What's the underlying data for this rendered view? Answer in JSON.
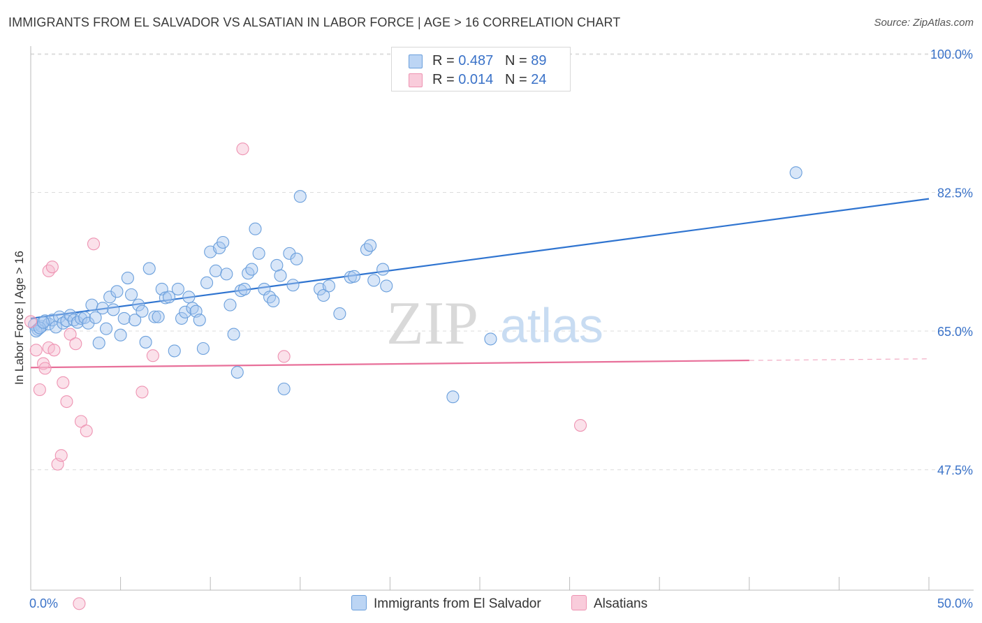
{
  "title": "IMMIGRANTS FROM EL SALVADOR VS ALSATIAN IN LABOR FORCE | AGE > 16 CORRELATION CHART",
  "source": "Source: ZipAtlas.com",
  "watermark": {
    "zip": "ZIP",
    "atlas": "atlas"
  },
  "legend": {
    "blue": {
      "r_label": "R = ",
      "r_value": "0.487",
      "n_label": "N = ",
      "n_value": "89"
    },
    "pink": {
      "r_label": "R = ",
      "r_value": "0.014",
      "n_label": "N = ",
      "n_value": "24"
    }
  },
  "colors": {
    "blue_fill": "#a9c8f0",
    "blue_stroke": "#6a9fdc",
    "blue_line": "#2f74d0",
    "pink_fill": "#f6bdd0",
    "pink_stroke": "#ee93b2",
    "pink_line": "#e8709a",
    "axis_text": "#3a72c8",
    "grid": "#dcdcdc"
  },
  "chart_data": {
    "type": "scatter",
    "xlabel": "",
    "ylabel": "In Labor Force | Age > 16",
    "xlim": [
      0,
      50
    ],
    "ylim": [
      32.3,
      101.5
    ],
    "x_tick_labels": [
      {
        "value": 0,
        "label": "0.0%"
      },
      {
        "value": 50,
        "label": "50.0%"
      }
    ],
    "y_ticks": [
      {
        "value": 100.0,
        "label": "100.0%"
      },
      {
        "value": 82.5,
        "label": "82.5%"
      },
      {
        "value": 65.0,
        "label": "65.0%"
      },
      {
        "value": 47.5,
        "label": "47.5%"
      }
    ],
    "series": [
      {
        "name": "Immigrants from El Salvador",
        "color": "blue",
        "trend": {
          "x0": 0,
          "y0": 66.6,
          "x1": 50,
          "y1": 81.7
        },
        "points": [
          [
            0.2,
            65.8
          ],
          [
            0.4,
            65.2
          ],
          [
            0.6,
            65.6
          ],
          [
            0.8,
            66.3
          ],
          [
            1.0,
            65.9
          ],
          [
            1.2,
            66.4
          ],
          [
            1.4,
            65.5
          ],
          [
            1.6,
            66.8
          ],
          [
            1.8,
            66.0
          ],
          [
            2.0,
            66.3
          ],
          [
            2.2,
            67.0
          ],
          [
            2.4,
            66.4
          ],
          [
            2.6,
            66.1
          ],
          [
            2.8,
            66.6
          ],
          [
            3.0,
            66.7
          ],
          [
            3.2,
            66.0
          ],
          [
            3.4,
            68.3
          ],
          [
            3.6,
            66.7
          ],
          [
            3.8,
            63.5
          ],
          [
            4.0,
            67.9
          ],
          [
            4.2,
            65.3
          ],
          [
            4.4,
            69.3
          ],
          [
            4.6,
            67.7
          ],
          [
            4.8,
            70.0
          ],
          [
            5.0,
            64.5
          ],
          [
            5.2,
            66.6
          ],
          [
            5.4,
            71.7
          ],
          [
            5.6,
            69.6
          ],
          [
            5.8,
            66.4
          ],
          [
            6.0,
            68.3
          ],
          [
            6.2,
            67.5
          ],
          [
            6.4,
            63.6
          ],
          [
            6.6,
            72.9
          ],
          [
            6.9,
            66.8
          ],
          [
            7.1,
            66.8
          ],
          [
            7.3,
            70.3
          ],
          [
            7.5,
            69.2
          ],
          [
            7.7,
            69.3
          ],
          [
            8.0,
            62.5
          ],
          [
            8.2,
            70.3
          ],
          [
            8.4,
            66.6
          ],
          [
            8.6,
            67.4
          ],
          [
            8.8,
            69.3
          ],
          [
            9.0,
            67.9
          ],
          [
            9.2,
            67.5
          ],
          [
            9.4,
            66.4
          ],
          [
            9.6,
            62.8
          ],
          [
            9.8,
            71.1
          ],
          [
            10.0,
            75.0
          ],
          [
            10.3,
            72.6
          ],
          [
            10.5,
            75.5
          ],
          [
            10.7,
            76.2
          ],
          [
            10.9,
            72.2
          ],
          [
            11.1,
            68.3
          ],
          [
            11.3,
            64.6
          ],
          [
            11.5,
            59.8
          ],
          [
            11.7,
            70.1
          ],
          [
            11.9,
            70.3
          ],
          [
            12.1,
            72.3
          ],
          [
            12.3,
            72.8
          ],
          [
            12.5,
            77.9
          ],
          [
            12.7,
            74.8
          ],
          [
            13.0,
            70.3
          ],
          [
            13.3,
            69.3
          ],
          [
            13.5,
            68.8
          ],
          [
            13.7,
            73.3
          ],
          [
            13.9,
            72.0
          ],
          [
            14.1,
            57.7
          ],
          [
            14.4,
            74.8
          ],
          [
            14.6,
            70.8
          ],
          [
            14.8,
            74.1
          ],
          [
            15.0,
            82.0
          ],
          [
            16.1,
            70.3
          ],
          [
            16.3,
            69.5
          ],
          [
            16.6,
            70.7
          ],
          [
            17.2,
            67.2
          ],
          [
            17.8,
            71.8
          ],
          [
            18.0,
            71.9
          ],
          [
            18.7,
            75.3
          ],
          [
            18.9,
            75.8
          ],
          [
            19.1,
            71.4
          ],
          [
            19.6,
            72.8
          ],
          [
            19.8,
            70.7
          ],
          [
            23.5,
            56.7
          ],
          [
            25.6,
            64.0
          ],
          [
            42.6,
            85.0
          ],
          [
            0.3,
            65.0
          ],
          [
            0.5,
            65.4
          ],
          [
            0.7,
            66.1
          ]
        ]
      },
      {
        "name": "Alsatians",
        "color": "pink",
        "trend": {
          "x0": 0,
          "y0": 60.4,
          "x1": 40,
          "y1": 61.3,
          "dash_to_x": 50,
          "dash_to_y": 61.5
        },
        "points": [
          [
            0.0,
            66.2
          ],
          [
            0.3,
            62.6
          ],
          [
            0.5,
            57.6
          ],
          [
            0.7,
            60.9
          ],
          [
            0.8,
            60.3
          ],
          [
            1.0,
            62.9
          ],
          [
            1.0,
            72.6
          ],
          [
            1.2,
            73.1
          ],
          [
            1.3,
            62.6
          ],
          [
            1.5,
            48.2
          ],
          [
            1.7,
            49.3
          ],
          [
            1.8,
            58.5
          ],
          [
            2.0,
            56.1
          ],
          [
            2.2,
            64.6
          ],
          [
            2.5,
            63.4
          ],
          [
            2.8,
            53.6
          ],
          [
            3.1,
            52.4
          ],
          [
            3.5,
            76.0
          ],
          [
            6.2,
            57.3
          ],
          [
            6.8,
            61.9
          ],
          [
            11.8,
            88.0
          ],
          [
            14.1,
            61.8
          ],
          [
            30.6,
            53.1
          ],
          [
            2.7,
            30.6
          ]
        ]
      }
    ]
  }
}
